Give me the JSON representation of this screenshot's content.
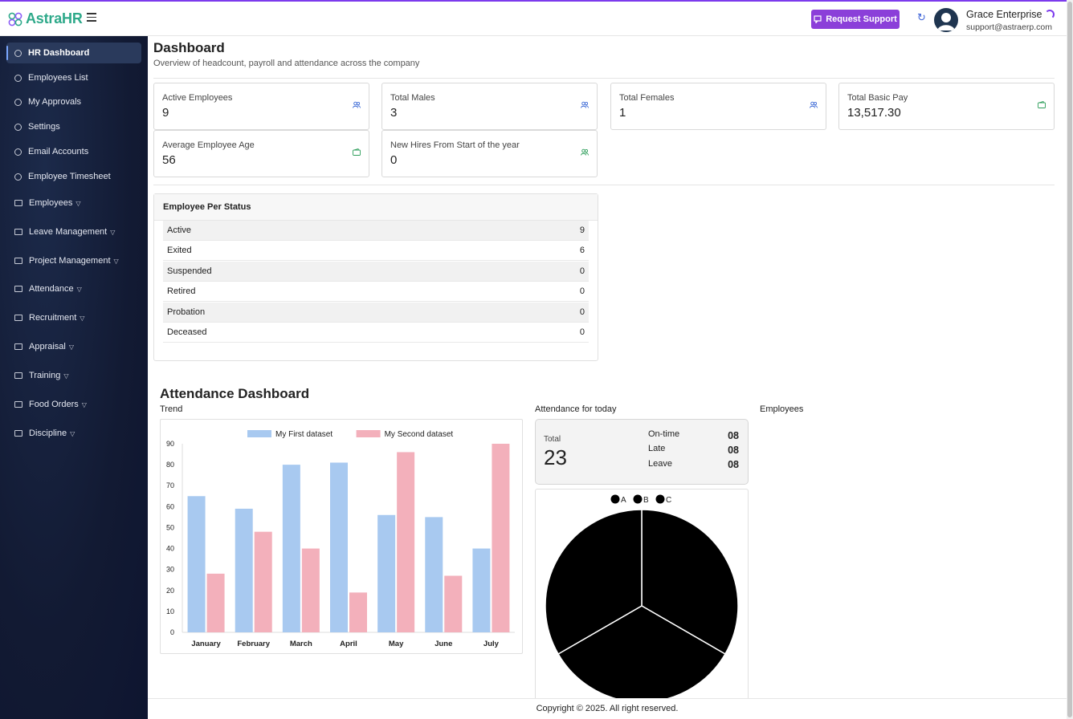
{
  "brand": {
    "name": "AstraHR"
  },
  "header": {
    "support_label": "Request Support",
    "user_name": "Grace Enterprise",
    "user_email": "support@astraerp.com"
  },
  "sidebar": {
    "items": [
      {
        "label": "HR Dashboard",
        "icon": "circle-icon"
      },
      {
        "label": "Employees List",
        "icon": "circle-icon"
      },
      {
        "label": "My Approvals",
        "icon": "circle-icon"
      },
      {
        "label": "Settings",
        "icon": "circle-icon"
      },
      {
        "label": "Email Accounts",
        "icon": "circle-icon"
      },
      {
        "label": "Employee Timesheet",
        "icon": "circle-icon"
      },
      {
        "label": "Employees",
        "icon": "folder-icon"
      },
      {
        "label": "Leave Management",
        "icon": "folder-icon"
      },
      {
        "label": "Project Management",
        "icon": "folder-icon"
      },
      {
        "label": "Attendance",
        "icon": "folder-icon"
      },
      {
        "label": "Recruitment",
        "icon": "folder-icon"
      },
      {
        "label": "Appraisal",
        "icon": "folder-icon"
      },
      {
        "label": "Training",
        "icon": "folder-icon"
      },
      {
        "label": "Food Orders",
        "icon": "folder-icon"
      },
      {
        "label": "Discipline",
        "icon": "folder-icon"
      }
    ]
  },
  "page": {
    "title": "Dashboard",
    "subtitle": "Overview of headcount, payroll and attendance across the company"
  },
  "stats": [
    {
      "label": "Active Employees",
      "value": "9",
      "icon": "users-icon"
    },
    {
      "label": "Total Males",
      "value": "3",
      "icon": "users-icon"
    },
    {
      "label": "Total Females",
      "value": "1",
      "icon": "users-icon"
    },
    {
      "label": "Total Basic Pay",
      "value": "13,517.30",
      "icon": "wallet-icon"
    },
    {
      "label": "Average Employee Age",
      "value": "56",
      "icon": "wallet-icon"
    },
    {
      "label": "New Hires From Start of the year",
      "value": "0",
      "icon": "users-icon"
    }
  ],
  "status_card": {
    "title": "Employee Per Status",
    "rows": [
      {
        "label": "Active",
        "value": "9"
      },
      {
        "label": "Exited",
        "value": "6"
      },
      {
        "label": "Suspended",
        "value": "0"
      },
      {
        "label": "Retired",
        "value": "0"
      },
      {
        "label": "Probation",
        "value": "0"
      },
      {
        "label": "Deceased",
        "value": "0"
      }
    ]
  },
  "attendance": {
    "title": "Attendance Dashboard",
    "trend_label": "Trend",
    "today_label": "Attendance for today",
    "employees_label": "Employees",
    "total_label": "Total",
    "total_value": "23",
    "ontime_label": "On-time",
    "ontime_value": "08",
    "late_label": "Late",
    "late_value": "08",
    "leave_label": "Leave",
    "leave_value": "08"
  },
  "footer": {
    "text": "Copyright © 2025. All right reserved."
  },
  "colors": {
    "accent": "#8b3fd9",
    "series1": "#a8c9f0",
    "series2": "#f3b0bb"
  },
  "chart_data": [
    {
      "type": "bar",
      "categories": [
        "January",
        "February",
        "March",
        "April",
        "May",
        "June",
        "July"
      ],
      "series": [
        {
          "name": "My First dataset",
          "values": [
            65,
            59,
            80,
            81,
            56,
            55,
            40
          ]
        },
        {
          "name": "My Second dataset",
          "values": [
            28,
            48,
            40,
            19,
            86,
            27,
            90
          ]
        }
      ],
      "ylim": [
        0,
        90
      ],
      "yticks": [
        0,
        10,
        20,
        30,
        40,
        50,
        60,
        70,
        80,
        90
      ],
      "legend": "top"
    },
    {
      "type": "pie",
      "labels": [
        "A",
        "B",
        "C"
      ],
      "values": [
        8,
        8,
        8
      ],
      "legend": "top"
    }
  ]
}
